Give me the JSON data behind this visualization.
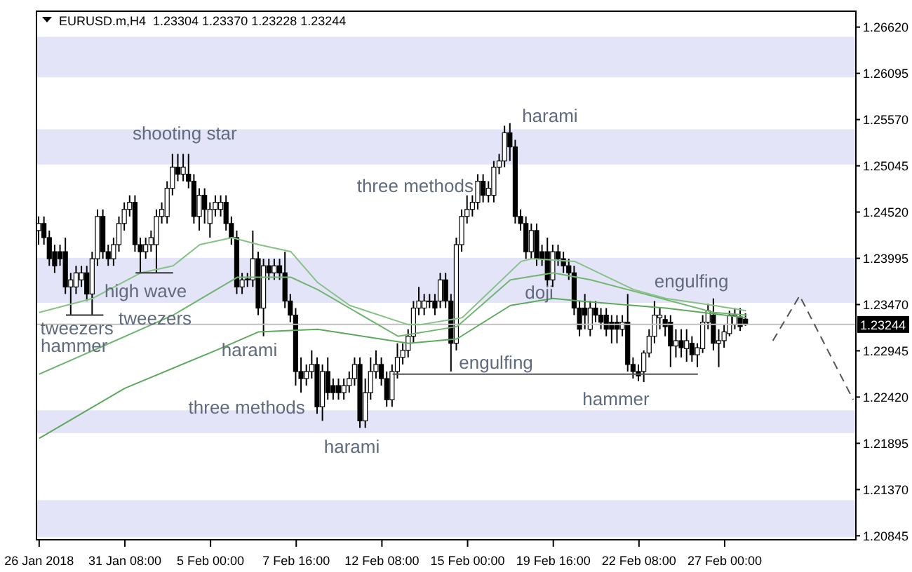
{
  "chart_data": {
    "type": "candlestick",
    "title": "EURUSD.m,H4  1.23304 1.23370 1.23228 1.23244",
    "marker": "none",
    "categories": [
      "26 Jan 2018",
      null,
      null,
      null,
      null,
      null,
      null,
      null,
      null,
      null,
      null,
      null,
      null,
      null,
      null,
      null,
      "31 Jan 08:00",
      null,
      null,
      null,
      null,
      null,
      null,
      null,
      null,
      null,
      null,
      null,
      null,
      null,
      null,
      null,
      "5 Feb 00:00",
      null,
      null,
      null,
      null,
      null,
      null,
      null,
      null,
      null,
      null,
      null,
      null,
      null,
      null,
      null,
      "7 Feb 16:00",
      null,
      null,
      null,
      null,
      null,
      null,
      null,
      null,
      null,
      null,
      null,
      null,
      null,
      null,
      null,
      "12 Feb 08:00",
      null,
      null,
      null,
      null,
      null,
      null,
      null,
      null,
      null,
      null,
      null,
      null,
      null,
      null,
      null,
      "15 Feb 00:00",
      null,
      null,
      null,
      null,
      null,
      null,
      null,
      null,
      null,
      null,
      null,
      null,
      null,
      null,
      null,
      "19 Feb 16:00",
      null,
      null,
      null,
      null,
      null,
      null,
      null,
      null,
      null,
      null,
      null,
      null,
      null,
      null,
      null,
      "22 Feb 08:00",
      null,
      null,
      null,
      null,
      null,
      null,
      null,
      null,
      null,
      null,
      null,
      null,
      null,
      null,
      null,
      "27 Feb 00:00",
      null,
      null,
      null,
      null,
      null,
      null,
      null,
      null,
      null,
      null,
      null,
      null,
      null,
      null,
      null,
      null,
      null,
      null,
      null,
      null,
      null,
      null,
      null,
      null
    ],
    "ohlc": [
      [
        1.2431,
        1.2447,
        1.2415,
        1.2439
      ],
      [
        1.2439,
        1.2447,
        1.2415,
        1.2423
      ],
      [
        1.2423,
        1.2431,
        1.2391,
        1.2399
      ],
      [
        1.2407,
        1.2415,
        1.2383,
        1.2391
      ],
      [
        1.2407,
        1.2415,
        1.2391,
        1.2399
      ],
      [
        1.2407,
        1.2423,
        1.2359,
        1.2367
      ],
      [
        1.2367,
        1.2383,
        1.2335,
        1.2375
      ],
      [
        1.2367,
        1.2391,
        1.2359,
        1.2383
      ],
      [
        1.2375,
        1.2391,
        1.2367,
        1.2383
      ],
      [
        1.2383,
        1.2391,
        1.2351,
        1.2359
      ],
      [
        1.2359,
        1.2407,
        1.2335,
        1.2399
      ],
      [
        1.2399,
        1.2455,
        1.2391,
        1.2447
      ],
      [
        1.2447,
        1.2455,
        1.2399,
        1.2407
      ],
      [
        1.2407,
        1.2415,
        1.2391,
        1.2399
      ],
      [
        1.2399,
        1.2423,
        1.2391,
        1.2415
      ],
      [
        1.2415,
        1.2447,
        1.2407,
        1.2439
      ],
      [
        1.2439,
        1.2463,
        1.2431,
        1.2455
      ],
      [
        1.2455,
        1.2471,
        1.2447,
        1.2463
      ],
      [
        1.2463,
        1.2471,
        1.2407,
        1.2415
      ],
      [
        1.2415,
        1.2423,
        1.2383,
        1.2407
      ],
      [
        1.2407,
        1.2423,
        1.2399,
        1.2415
      ],
      [
        1.2415,
        1.2431,
        1.2407,
        1.2423
      ],
      [
        1.2415,
        1.2455,
        1.2383,
        1.2447
      ],
      [
        1.2447,
        1.2463,
        1.2439,
        1.2455
      ],
      [
        1.2447,
        1.2487,
        1.2439,
        1.2479
      ],
      [
        1.2479,
        1.2518,
        1.2471,
        1.2503
      ],
      [
        1.2503,
        1.2518,
        1.2487,
        1.2495
      ],
      [
        1.2495,
        1.2518,
        1.2487,
        1.2503
      ],
      [
        1.2495,
        1.2518,
        1.2479,
        1.2487
      ],
      [
        1.2487,
        1.2495,
        1.2439,
        1.2447
      ],
      [
        1.2447,
        1.2479,
        1.2431,
        1.2471
      ],
      [
        1.2471,
        1.2479,
        1.2439,
        1.2455
      ],
      [
        1.2439,
        1.2463,
        1.2423,
        1.2455
      ],
      [
        1.2455,
        1.2471,
        1.2447,
        1.2463
      ],
      [
        1.2455,
        1.2471,
        1.2447,
        1.2463
      ],
      [
        1.2463,
        1.2471,
        1.2431,
        1.2439
      ],
      [
        1.2439,
        1.2447,
        1.2415,
        1.2423
      ],
      [
        1.2423,
        1.2431,
        1.2359,
        1.2367
      ],
      [
        1.2367,
        1.2383,
        1.2359,
        1.2375
      ],
      [
        1.2375,
        1.2383,
        1.2367,
        1.2376
      ],
      [
        1.2375,
        1.2431,
        1.2367,
        1.2399
      ],
      [
        1.2399,
        1.2407,
        1.2335,
        1.2343
      ],
      [
        1.2343,
        1.2399,
        1.2311,
        1.2391
      ],
      [
        1.2391,
        1.2399,
        1.2375,
        1.2383
      ],
      [
        1.2383,
        1.2399,
        1.2375,
        1.2391
      ],
      [
        1.2391,
        1.2399,
        1.2375,
        1.2383
      ],
      [
        1.2383,
        1.2407,
        1.2343,
        1.2351
      ],
      [
        1.2351,
        1.2359,
        1.2327,
        1.2335
      ],
      [
        1.2335,
        1.2343,
        1.2255,
        1.2271
      ],
      [
        1.2271,
        1.2287,
        1.2247,
        1.2263
      ],
      [
        1.2263,
        1.2279,
        1.2255,
        1.2271
      ],
      [
        1.2271,
        1.2295,
        1.2263,
        1.2279
      ],
      [
        1.2279,
        1.2287,
        1.2223,
        1.2231
      ],
      [
        1.2231,
        1.2279,
        1.2215,
        1.2271
      ],
      [
        1.2271,
        1.2287,
        1.2239,
        1.2247
      ],
      [
        1.2255,
        1.2263,
        1.2239,
        1.2247
      ],
      [
        1.2255,
        1.2263,
        1.2239,
        1.2247
      ],
      [
        1.2247,
        1.2263,
        1.2239,
        1.2255
      ],
      [
        1.2255,
        1.2271,
        1.2247,
        1.2263
      ],
      [
        1.2263,
        1.2287,
        1.2255,
        1.2279
      ],
      [
        1.2279,
        1.2287,
        1.2207,
        1.2215
      ],
      [
        1.2215,
        1.2263,
        1.2207,
        1.2247
      ],
      [
        1.2247,
        1.2287,
        1.2239,
        1.2271
      ],
      [
        1.2271,
        1.2295,
        1.2263,
        1.2279
      ],
      [
        1.2279,
        1.2287,
        1.2255,
        1.2263
      ],
      [
        1.2263,
        1.2271,
        1.2231,
        1.2239
      ],
      [
        1.2239,
        1.2279,
        1.2231,
        1.2271
      ],
      [
        1.2271,
        1.2303,
        1.2263,
        1.2287
      ],
      [
        1.2287,
        1.2303,
        1.2279,
        1.2295
      ],
      [
        1.2295,
        1.2319,
        1.2287,
        1.2311
      ],
      [
        1.2311,
        1.2351,
        1.2303,
        1.2343
      ],
      [
        1.2343,
        1.2367,
        1.2335,
        1.2351
      ],
      [
        1.2343,
        1.2359,
        1.2335,
        1.2351
      ],
      [
        1.2351,
        1.2359,
        1.2343,
        1.2351
      ],
      [
        1.2351,
        1.2359,
        1.2335,
        1.2343
      ],
      [
        1.2351,
        1.2383,
        1.2343,
        1.2375
      ],
      [
        1.2375,
        1.2383,
        1.2343,
        1.2351
      ],
      [
        1.2351,
        1.2359,
        1.2271,
        1.2303
      ],
      [
        1.2303,
        1.2423,
        1.2295,
        1.2415
      ],
      [
        1.2415,
        1.2455,
        1.2407,
        1.2447
      ],
      [
        1.2447,
        1.2471,
        1.2439,
        1.2455
      ],
      [
        1.2455,
        1.2471,
        1.2447,
        1.2463
      ],
      [
        1.2463,
        1.2495,
        1.2455,
        1.2487
      ],
      [
        1.2487,
        1.2495,
        1.2463,
        1.2471
      ],
      [
        1.2471,
        1.2487,
        1.2463,
        1.2479
      ],
      [
        1.2471,
        1.251,
        1.2463,
        1.2503
      ],
      [
        1.2503,
        1.2518,
        1.2495,
        1.251
      ],
      [
        1.251,
        1.255,
        1.2503,
        1.2542
      ],
      [
        1.2542,
        1.2553,
        1.251,
        1.2526
      ],
      [
        1.2526,
        1.2534,
        1.2439,
        1.2447
      ],
      [
        1.2447,
        1.2455,
        1.2431,
        1.2439
      ],
      [
        1.2439,
        1.2447,
        1.2399,
        1.2407
      ],
      [
        1.2407,
        1.2439,
        1.2399,
        1.2431
      ],
      [
        1.2431,
        1.2439,
        1.2391,
        1.2399
      ],
      [
        1.2407,
        1.2415,
        1.2391,
        1.2399
      ],
      [
        1.2407,
        1.2423,
        1.2367,
        1.2375
      ],
      [
        1.2375,
        1.2415,
        1.2367,
        1.2407
      ],
      [
        1.2407,
        1.2415,
        1.2391,
        1.2399
      ],
      [
        1.2399,
        1.2407,
        1.2383,
        1.2391
      ],
      [
        1.2391,
        1.2399,
        1.2375,
        1.2383
      ],
      [
        1.2383,
        1.2391,
        1.2335,
        1.2343
      ],
      [
        1.2343,
        1.2351,
        1.2311,
        1.2319
      ],
      [
        1.2343,
        1.2359,
        1.2319,
        1.2335
      ],
      [
        1.2319,
        1.2351,
        1.2311,
        1.2343
      ],
      [
        1.2343,
        1.2351,
        1.2327,
        1.2335
      ],
      [
        1.2335,
        1.2343,
        1.2319,
        1.2327
      ],
      [
        1.2335,
        1.2343,
        1.2311,
        1.2319
      ],
      [
        1.2327,
        1.2335,
        1.2303,
        1.2319
      ],
      [
        1.2327,
        1.2335,
        1.2303,
        1.2319
      ],
      [
        1.2319,
        1.2335,
        1.2311,
        1.2327
      ],
      [
        1.2327,
        1.2359,
        1.2271,
        1.2279
      ],
      [
        1.2279,
        1.2287,
        1.2263,
        1.2271
      ],
      [
        1.2271,
        1.2279,
        1.226,
        1.2266
      ],
      [
        1.2271,
        1.2295,
        1.2259,
        1.2292
      ],
      [
        1.2292,
        1.2319,
        1.2287,
        1.2311
      ],
      [
        1.2311,
        1.2351,
        1.2303,
        1.2335
      ],
      [
        1.2332,
        1.2343,
        1.2319,
        1.2335
      ],
      [
        1.233,
        1.2335,
        1.2311,
        1.2322
      ],
      [
        1.2327,
        1.2335,
        1.2276,
        1.23
      ],
      [
        1.23,
        1.2319,
        1.2287,
        1.2306
      ],
      [
        1.2306,
        1.2319,
        1.2287,
        1.2298
      ],
      [
        1.2297,
        1.2319,
        1.2282,
        1.2306
      ],
      [
        1.2303,
        1.2311,
        1.2282,
        1.229
      ],
      [
        1.229,
        1.2303,
        1.2276,
        1.2298
      ],
      [
        1.2297,
        1.2335,
        1.2292,
        1.2327
      ],
      [
        1.2327,
        1.2348,
        1.2319,
        1.234
      ],
      [
        1.2335,
        1.2354,
        1.2295,
        1.2303
      ],
      [
        1.2303,
        1.2319,
        1.2276,
        1.2306
      ],
      [
        1.2306,
        1.2324,
        1.2298,
        1.2316
      ],
      [
        1.2314,
        1.234,
        1.2311,
        1.2335
      ],
      [
        1.2324,
        1.2343,
        1.2319,
        1.2335
      ],
      [
        1.2333,
        1.2343,
        1.2317,
        1.2322
      ],
      [
        1.23304,
        1.2337,
        1.23228,
        1.23244
      ],
      null,
      null,
      null,
      null,
      null,
      null,
      null,
      null,
      null,
      null,
      null,
      null,
      null,
      null,
      null,
      null,
      null,
      null,
      null,
      null
    ],
    "series": [
      {
        "type": "line",
        "color": "#86c186",
        "line_style": "solid",
        "values": [
          1.2338,
          null,
          null,
          null,
          null,
          null,
          null,
          null,
          null,
          null,
          1.2354,
          null,
          null,
          null,
          null,
          null,
          null,
          null,
          null,
          1.2383,
          null,
          null,
          null,
          null,
          null,
          1.2391,
          null,
          null,
          null,
          null,
          1.2415,
          null,
          null,
          null,
          null,
          null,
          1.2423,
          null,
          null,
          null,
          null,
          1.2415,
          null,
          null,
          null,
          null,
          null,
          1.2407,
          null,
          null,
          null,
          null,
          1.2372,
          null,
          null,
          null,
          null,
          null,
          1.2346,
          null,
          null,
          null,
          null,
          null,
          null,
          null,
          null,
          null,
          null,
          1.2324,
          null,
          1.2324,
          null,
          null,
          null,
          null,
          null,
          null,
          null,
          1.2332,
          null,
          null,
          null,
          null,
          null,
          null,
          null,
          null,
          null,
          null,
          1.2396,
          null,
          1.2399,
          null,
          null,
          null,
          null,
          null,
          null,
          null,
          1.2396,
          null,
          null,
          null,
          null,
          null,
          null,
          null,
          null,
          null,
          null,
          1.2364,
          null,
          null,
          null,
          null,
          null,
          1.2354,
          null,
          null,
          null,
          null,
          null,
          null,
          null,
          null,
          1.2346,
          null,
          null,
          null,
          null,
          null,
          1.234,
          null,
          null,
          null,
          null,
          null,
          null,
          null,
          null,
          null,
          null,
          null,
          null,
          null,
          null,
          null,
          null,
          null,
          null,
          null,
          null
        ]
      },
      {
        "type": "line",
        "color": "#72b572",
        "line_style": "solid",
        "values": [
          1.2268,
          null,
          null,
          null,
          null,
          null,
          null,
          null,
          null,
          null,
          null,
          null,
          1.23,
          null,
          null,
          null,
          null,
          null,
          null,
          null,
          null,
          null,
          null,
          null,
          null,
          1.2335,
          null,
          null,
          null,
          null,
          null,
          null,
          null,
          null,
          null,
          null,
          null,
          1.2378,
          null,
          null,
          null,
          null,
          null,
          null,
          null,
          null,
          null,
          1.2378,
          null,
          null,
          null,
          null,
          1.2364,
          null,
          null,
          null,
          null,
          null,
          null,
          null,
          null,
          null,
          null,
          null,
          null,
          null,
          null,
          1.2311,
          null,
          null,
          null,
          null,
          null,
          null,
          null,
          null,
          null,
          null,
          1.2322,
          null,
          null,
          null,
          null,
          null,
          null,
          null,
          null,
          null,
          1.2375,
          null,
          null,
          null,
          null,
          null,
          null,
          null,
          1.2383,
          null,
          null,
          null,
          null,
          null,
          null,
          1.2375,
          null,
          null,
          null,
          null,
          null,
          null,
          null,
          null,
          null,
          1.2359,
          null,
          null,
          null,
          null,
          null,
          null,
          null,
          null,
          null,
          null,
          null,
          null,
          1.2338,
          null,
          null,
          null,
          null,
          null,
          1.2335,
          null,
          null,
          null,
          null,
          null,
          null,
          null,
          null,
          null,
          null,
          null,
          null,
          null,
          null,
          null,
          null,
          null,
          null,
          null,
          null
        ]
      },
      {
        "type": "line",
        "color": "#5fa85f",
        "line_style": "solid",
        "values": [
          1.2195,
          null,
          null,
          null,
          null,
          null,
          null,
          null,
          null,
          null,
          null,
          null,
          null,
          null,
          null,
          null,
          1.2252,
          null,
          null,
          null,
          null,
          null,
          null,
          null,
          null,
          null,
          null,
          null,
          null,
          null,
          null,
          null,
          null,
          1.2295,
          null,
          null,
          null,
          null,
          null,
          null,
          null,
          1.2316,
          null,
          null,
          null,
          null,
          null,
          null,
          null,
          null,
          null,
          null,
          1.2319,
          null,
          null,
          null,
          null,
          null,
          null,
          null,
          null,
          null,
          null,
          null,
          null,
          null,
          null,
          null,
          null,
          1.2303,
          null,
          null,
          null,
          null,
          null,
          null,
          null,
          null,
          1.2308,
          null,
          null,
          null,
          null,
          null,
          null,
          null,
          null,
          null,
          1.2346,
          null,
          null,
          null,
          null,
          null,
          null,
          null,
          1.2354,
          null,
          null,
          null,
          null,
          1.2351,
          null,
          null,
          null,
          null,
          null,
          null,
          null,
          null,
          null,
          null,
          null,
          null,
          null,
          null,
          null,
          1.2343,
          null,
          null,
          null,
          null,
          null,
          null,
          null,
          null,
          null,
          null,
          null,
          null,
          null,
          null,
          1.2332,
          null,
          null,
          null,
          null,
          null,
          null,
          null,
          null,
          null,
          null,
          null,
          null,
          null,
          null,
          null,
          null,
          null,
          null,
          null,
          null
        ]
      },
      {
        "type": "line",
        "color": "#333333",
        "line_style": "solid",
        "values": [
          null,
          null,
          null,
          null,
          null,
          1.2335,
          null,
          null,
          null,
          null,
          null,
          null,
          1.2335,
          null,
          null,
          null,
          null,
          null,
          null,
          null,
          null,
          null,
          null,
          null,
          null,
          null,
          null,
          null,
          null,
          null,
          null,
          null,
          null,
          null,
          null,
          null,
          null,
          null,
          null,
          null,
          null,
          null,
          null,
          null,
          null,
          null,
          null,
          null,
          null,
          null,
          null,
          null,
          null,
          null,
          null,
          null,
          null,
          null,
          null,
          null,
          null,
          null,
          null,
          null,
          null,
          null,
          null,
          null,
          null,
          null,
          null,
          null,
          null,
          null,
          null,
          null,
          null,
          null,
          null,
          null,
          null,
          null,
          null,
          null,
          null,
          null,
          null,
          null,
          null,
          null,
          null,
          null,
          null,
          null,
          null,
          null,
          null,
          null,
          null,
          null,
          null,
          null,
          null,
          null,
          null,
          null,
          null,
          null,
          null,
          null,
          null,
          null,
          null,
          null,
          null,
          null,
          null,
          null,
          null,
          null,
          null,
          null,
          null,
          null,
          null,
          null,
          null,
          null,
          null,
          null,
          null,
          null,
          null,
          null,
          null,
          null,
          null,
          null,
          null,
          null,
          null,
          null,
          null,
          null,
          null,
          null,
          null,
          null,
          null,
          null,
          null,
          null,
          null
        ]
      },
      {
        "type": "line",
        "color": "#333333",
        "line_style": "solid",
        "values": [
          null,
          null,
          null,
          null,
          null,
          null,
          null,
          null,
          null,
          null,
          null,
          null,
          null,
          null,
          null,
          null,
          null,
          null,
          1.2383,
          null,
          null,
          null,
          null,
          null,
          null,
          1.2383,
          null,
          null,
          null,
          null,
          null,
          null,
          null,
          null,
          null,
          null,
          null,
          null,
          null,
          null,
          null,
          null,
          null,
          null,
          null,
          null,
          null,
          null,
          null,
          null,
          null,
          null,
          null,
          null,
          null,
          null,
          null,
          null,
          null,
          null,
          null,
          null,
          null,
          null,
          null,
          null,
          null,
          null,
          null,
          null,
          null,
          null,
          null,
          null,
          null,
          null,
          null,
          null,
          null,
          null,
          null,
          null,
          null,
          null,
          null,
          null,
          null,
          null,
          null,
          null,
          null,
          null,
          null,
          null,
          null,
          null,
          null,
          null,
          null,
          null,
          null,
          null,
          null,
          null,
          null,
          null,
          null,
          null,
          null,
          null,
          null,
          null,
          null,
          null,
          null,
          null,
          null,
          null,
          null,
          null,
          null,
          null,
          null,
          null,
          null,
          null,
          null,
          null,
          null,
          null,
          null,
          null,
          null,
          null,
          null,
          null,
          null,
          null,
          null,
          null,
          null,
          null,
          null,
          null,
          null,
          null,
          null,
          null,
          null,
          null,
          null,
          null,
          null
        ]
      },
      {
        "type": "line",
        "color": "#555555",
        "line_style": "solid",
        "values": [
          null,
          null,
          null,
          null,
          null,
          null,
          null,
          null,
          null,
          null,
          null,
          null,
          null,
          null,
          null,
          null,
          null,
          null,
          null,
          null,
          null,
          null,
          null,
          null,
          null,
          null,
          null,
          null,
          null,
          null,
          null,
          null,
          null,
          null,
          null,
          null,
          null,
          null,
          null,
          null,
          null,
          null,
          null,
          null,
          null,
          null,
          null,
          null,
          null,
          null,
          null,
          null,
          null,
          null,
          null,
          null,
          null,
          null,
          null,
          null,
          null,
          null,
          null,
          null,
          null,
          null,
          1.2268,
          null,
          null,
          null,
          null,
          null,
          null,
          null,
          null,
          null,
          null,
          null,
          null,
          null,
          null,
          null,
          null,
          null,
          null,
          null,
          null,
          null,
          null,
          null,
          null,
          null,
          null,
          null,
          null,
          null,
          null,
          null,
          null,
          null,
          null,
          null,
          null,
          null,
          null,
          null,
          null,
          null,
          null,
          null,
          null,
          null,
          null,
          null,
          null,
          null,
          null,
          null,
          null,
          null,
          null,
          null,
          null,
          1.2268,
          null,
          null,
          null,
          null,
          null,
          null,
          null,
          null,
          null,
          null,
          null,
          null,
          null,
          null,
          null,
          null,
          null,
          null,
          null,
          null,
          null,
          null,
          null,
          null,
          null,
          null,
          null,
          null,
          null
        ]
      },
      {
        "type": "line",
        "color": "#555555",
        "line_style": "dashed",
        "values": [
          null,
          null,
          null,
          null,
          null,
          null,
          null,
          null,
          null,
          null,
          null,
          null,
          null,
          null,
          null,
          null,
          null,
          null,
          null,
          null,
          null,
          null,
          null,
          null,
          null,
          null,
          null,
          null,
          null,
          null,
          null,
          null,
          null,
          null,
          null,
          null,
          null,
          null,
          null,
          null,
          null,
          null,
          null,
          null,
          null,
          null,
          null,
          null,
          null,
          null,
          null,
          null,
          null,
          null,
          null,
          null,
          null,
          null,
          null,
          null,
          null,
          null,
          null,
          null,
          null,
          null,
          null,
          null,
          null,
          null,
          null,
          null,
          null,
          null,
          null,
          null,
          null,
          null,
          null,
          null,
          null,
          null,
          null,
          null,
          null,
          null,
          null,
          null,
          null,
          null,
          null,
          null,
          null,
          null,
          null,
          null,
          null,
          null,
          null,
          null,
          null,
          null,
          null,
          null,
          null,
          null,
          null,
          null,
          null,
          null,
          null,
          null,
          null,
          null,
          null,
          null,
          null,
          null,
          null,
          null,
          null,
          null,
          null,
          null,
          null,
          null,
          null,
          null,
          null,
          null,
          null,
          null,
          null,
          null,
          null,
          null,
          null,
          1.2306,
          null,
          null,
          null,
          null,
          1.2357,
          null,
          null,
          null,
          null,
          null,
          null,
          null,
          null,
          null,
          1.2239
        ]
      }
    ],
    "ylim": [
      1.208,
      1.268
    ],
    "yticks": [
      {
        "value": 1.2662,
        "label": "1.26620"
      },
      {
        "value": 1.26095,
        "label": "1.26095"
      },
      {
        "value": 1.2557,
        "label": "1.25570"
      },
      {
        "value": 1.25045,
        "label": "1.25045"
      },
      {
        "value": 1.2452,
        "label": "1.24520"
      },
      {
        "value": 1.23995,
        "label": "1.23995"
      },
      {
        "value": 1.2347,
        "label": "1.23470"
      },
      {
        "value": 1.22945,
        "label": "1.22945"
      },
      {
        "value": 1.2242,
        "label": "1.22420"
      },
      {
        "value": 1.21895,
        "label": "1.21895"
      },
      {
        "value": 1.2137,
        "label": "1.21370"
      },
      {
        "value": 1.20845,
        "label": "1.20845"
      }
    ],
    "ref_lines": [
      {
        "axis": "y",
        "value": 1.23244,
        "label": "1.23244",
        "color": "#c0c0c0"
      }
    ],
    "bands": [
      {
        "axis": "y",
        "from": 1.2605,
        "to": 1.2651,
        "color": "#e4e4f8"
      },
      {
        "axis": "y",
        "from": 1.2506,
        "to": 1.2546,
        "color": "#e4e4f8"
      },
      {
        "axis": "y",
        "from": 1.2349,
        "to": 1.24,
        "color": "#e4e4f8"
      },
      {
        "axis": "y",
        "from": 1.2201,
        "to": 1.2227,
        "color": "#e4e4f8"
      },
      {
        "axis": "y",
        "from": 1.2083,
        "to": 1.2125,
        "color": "#e4e4f8"
      }
    ],
    "annotations": [
      {
        "text": "shooting star",
        "y": 1.2542
      },
      "high wave",
      {
        "text": "tweezers",
        "y": 1.2332
      },
      {
        "text": "tweezers",
        "y": 1.2321
      },
      "hammer",
      "harami",
      {
        "text": "three methods",
        "y": 1.2231
      },
      "harami",
      "three methods",
      "harami",
      "engulfing",
      "doji",
      "hammer",
      "engulfing"
    ]
  }
}
